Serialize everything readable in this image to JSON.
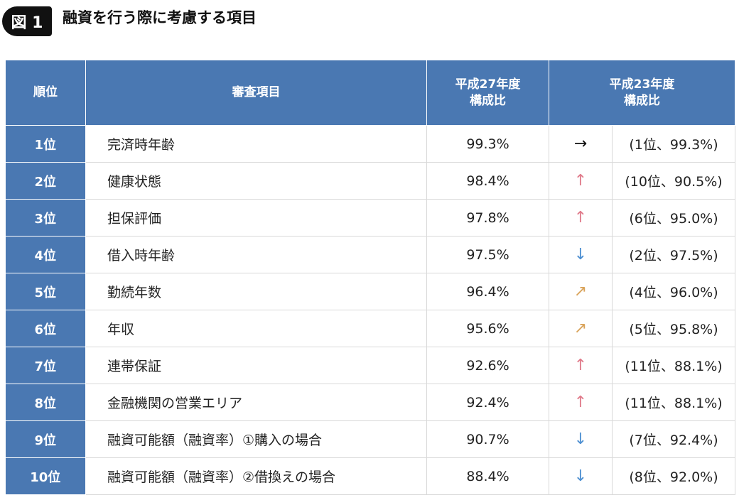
{
  "figure": {
    "badge": "図 1",
    "title": "融資を行う際に考慮する項目"
  },
  "table": {
    "headers": {
      "rank": "順位",
      "item": "審査項目",
      "h27_line1": "平成27年度",
      "h27_line2": "構成比",
      "h23_line1": "平成23年度",
      "h23_line2": "構成比"
    },
    "rows": [
      {
        "rank": "1位",
        "item": "完済時年齢",
        "ratio": "99.3%",
        "arrow": "→",
        "trend": "same",
        "prev": "(1位、99.3%)"
      },
      {
        "rank": "2位",
        "item": "健康状態",
        "ratio": "98.4%",
        "arrow": "↑",
        "trend": "up",
        "prev": "(10位、90.5%)"
      },
      {
        "rank": "3位",
        "item": "担保評価",
        "ratio": "97.8%",
        "arrow": "↑",
        "trend": "up",
        "prev": "(6位、95.0%)"
      },
      {
        "rank": "4位",
        "item": "借入時年齢",
        "ratio": "97.5%",
        "arrow": "↓",
        "trend": "down",
        "prev": "(2位、97.5%)"
      },
      {
        "rank": "5位",
        "item": "勤続年数",
        "ratio": "96.4%",
        "arrow": "↗",
        "trend": "slight-up",
        "prev": "(4位、96.0%)"
      },
      {
        "rank": "6位",
        "item": "年収",
        "ratio": "95.6%",
        "arrow": "↗",
        "trend": "slight-up",
        "prev": "(5位、95.8%)"
      },
      {
        "rank": "7位",
        "item": "連帯保証",
        "ratio": "92.6%",
        "arrow": "↑",
        "trend": "up",
        "prev": "(11位、88.1%)"
      },
      {
        "rank": "8位",
        "item": "金融機関の営業エリア",
        "ratio": "92.4%",
        "arrow": "↑",
        "trend": "up",
        "prev": "(11位、88.1%)"
      },
      {
        "rank": "9位",
        "item": "融資可能額（融資率）①購入の場合",
        "ratio": "90.7%",
        "arrow": "↓",
        "trend": "down",
        "prev": "(7位、92.4%)"
      },
      {
        "rank": "10位",
        "item": "融資可能額（融資率）②借換えの場合",
        "ratio": "88.4%",
        "arrow": "↓",
        "trend": "down",
        "prev": "(8位、92.0%)"
      }
    ]
  },
  "colors": {
    "header_bg": "#4a78b2",
    "arrow_same": "#111111",
    "arrow_up": "#e07a8a",
    "arrow_down": "#4d8fd1",
    "arrow_slight_up": "#d9a35a"
  }
}
